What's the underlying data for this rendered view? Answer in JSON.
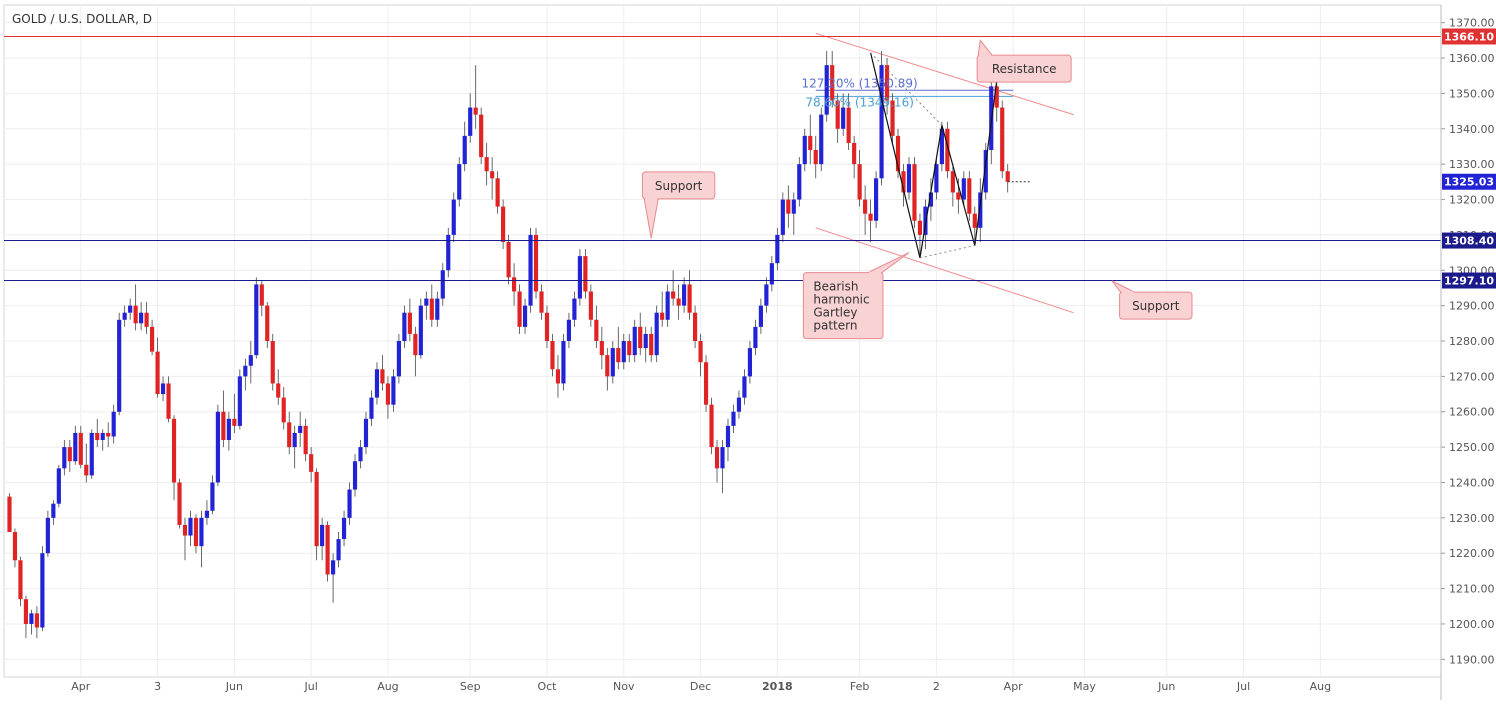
{
  "chart_data": {
    "type": "candlestick",
    "title": "GOLD / U.S. DOLLAR, D",
    "ylim": [
      1185,
      1375
    ],
    "y_ticks": [
      1190,
      1200,
      1210,
      1220,
      1230,
      1240,
      1250,
      1260,
      1270,
      1280,
      1290,
      1300,
      1310,
      1320,
      1330,
      1340,
      1350,
      1360,
      1370
    ],
    "x_tick_labels": [
      {
        "label": "Apr",
        "i": 13
      },
      {
        "label": "3",
        "i": 27
      },
      {
        "label": "Jun",
        "i": 41
      },
      {
        "label": "Jul",
        "i": 55
      },
      {
        "label": "Aug",
        "i": 69
      },
      {
        "label": "Sep",
        "i": 84
      },
      {
        "label": "Oct",
        "i": 98
      },
      {
        "label": "Nov",
        "i": 112
      },
      {
        "label": "Dec",
        "i": 126
      },
      {
        "label": "2018",
        "i": 140
      },
      {
        "label": "Feb",
        "i": 155
      },
      {
        "label": "2",
        "i": 169
      },
      {
        "label": "Apr",
        "i": 183
      },
      {
        "label": "May",
        "i": 196
      },
      {
        "label": "Jun",
        "i": 211
      },
      {
        "label": "Jul",
        "i": 225
      },
      {
        "label": "Aug",
        "i": 239
      }
    ],
    "x_range": [
      -1,
      261
    ],
    "grid": true,
    "colors": {
      "up": "#2323d6",
      "down": "#e02424",
      "resistance": "#e03232",
      "support": "#1b1b8c",
      "channel": "#f08a8a",
      "fib": "#4a9fd8"
    },
    "levels": [
      {
        "name": "Resistance",
        "price": 1366.1,
        "label": "1366.10",
        "color": "#e03232"
      },
      {
        "name": "Support",
        "price": 1308.4,
        "label": "1308.40",
        "color": "#1b1b8c"
      },
      {
        "name": "Support",
        "price": 1297.1,
        "label": "1297.10",
        "color": "#1b1b8c"
      }
    ],
    "last_price": {
      "price": 1325.03,
      "label": "1325.03",
      "color": "#2323d6"
    },
    "fib_levels": [
      {
        "text": "127.20% (1350.89)",
        "price": 1350.89,
        "from_i": 147,
        "to_i": 183,
        "color": "#5a6fd0"
      },
      {
        "text": "78.60% (1349.16)",
        "price": 1349.16,
        "from_i": 147,
        "to_i": 183,
        "color": "#4a9fd8"
      }
    ],
    "channel_lines": [
      {
        "i1": 147,
        "p1": 1367,
        "i2": 194,
        "p2": 1344
      },
      {
        "i1": 147,
        "p1": 1312,
        "i2": 194,
        "p2": 1288
      }
    ],
    "gartley": {
      "points": [
        {
          "i": 157,
          "p": 1361.5
        },
        {
          "i": 166,
          "p": 1303.5
        },
        {
          "i": 170,
          "p": 1341.0
        },
        {
          "i": 176,
          "p": 1307.0
        },
        {
          "i": 180,
          "p": 1353.5
        }
      ]
    },
    "annotations": [
      {
        "text": [
          "Resistance"
        ],
        "i": 185,
        "p": 1357,
        "arrow_to": {
          "i": 177,
          "p": 1365
        }
      },
      {
        "text": [
          "Support"
        ],
        "i": 122,
        "p": 1324,
        "arrow_to": {
          "i": 117,
          "p": 1309
        }
      },
      {
        "text": [
          "Support"
        ],
        "i": 209,
        "p": 1290,
        "arrow_to": {
          "i": 201,
          "p": 1297
        }
      },
      {
        "text": [
          "Bearish",
          "harmonic",
          "Gartley",
          "pattern"
        ],
        "i": 152,
        "p": 1290,
        "arrow_to": {
          "i": 164,
          "p": 1305
        }
      }
    ],
    "candles": [
      [
        1236,
        1237,
        1226,
        1226
      ],
      [
        1226,
        1227,
        1216,
        1218
      ],
      [
        1218,
        1219,
        1205,
        1207
      ],
      [
        1207,
        1208,
        1196,
        1200
      ],
      [
        1200,
        1204,
        1197,
        1203
      ],
      [
        1203,
        1205,
        1196,
        1199
      ],
      [
        1199,
        1222,
        1198,
        1220
      ],
      [
        1220,
        1232,
        1219,
        1230
      ],
      [
        1230,
        1235,
        1228,
        1234
      ],
      [
        1234,
        1245,
        1233,
        1244
      ],
      [
        1244,
        1252,
        1242,
        1250
      ],
      [
        1250,
        1252,
        1243,
        1246
      ],
      [
        1246,
        1256,
        1245,
        1254
      ],
      [
        1254,
        1256,
        1244,
        1245
      ],
      [
        1245,
        1251,
        1240,
        1242
      ],
      [
        1242,
        1255,
        1241,
        1254
      ],
      [
        1254,
        1258,
        1250,
        1252
      ],
      [
        1252,
        1255,
        1249,
        1254
      ],
      [
        1254,
        1257,
        1250,
        1253
      ],
      [
        1253,
        1262,
        1251,
        1260
      ],
      [
        1260,
        1288,
        1259,
        1286
      ],
      [
        1286,
        1290,
        1284,
        1288
      ],
      [
        1288,
        1292,
        1286,
        1290
      ],
      [
        1290,
        1296,
        1283,
        1285
      ],
      [
        1285,
        1291,
        1283,
        1288
      ],
      [
        1288,
        1291,
        1282,
        1284
      ],
      [
        1284,
        1286,
        1276,
        1277
      ],
      [
        1277,
        1281,
        1264,
        1265
      ],
      [
        1265,
        1270,
        1263,
        1268
      ],
      [
        1268,
        1270,
        1257,
        1258
      ],
      [
        1258,
        1259,
        1235,
        1240
      ],
      [
        1240,
        1241,
        1227,
        1228
      ],
      [
        1228,
        1230,
        1218,
        1225
      ],
      [
        1225,
        1232,
        1222,
        1230
      ],
      [
        1230,
        1231,
        1220,
        1222
      ],
      [
        1222,
        1232,
        1216,
        1230
      ],
      [
        1230,
        1235,
        1228,
        1232
      ],
      [
        1232,
        1242,
        1231,
        1240
      ],
      [
        1240,
        1262,
        1239,
        1260
      ],
      [
        1260,
        1266,
        1250,
        1252
      ],
      [
        1252,
        1260,
        1249,
        1258
      ],
      [
        1258,
        1265,
        1254,
        1256
      ],
      [
        1256,
        1272,
        1255,
        1270
      ],
      [
        1270,
        1275,
        1266,
        1273
      ],
      [
        1273,
        1280,
        1268,
        1276
      ],
      [
        1276,
        1298,
        1275,
        1296
      ],
      [
        1296,
        1297,
        1287,
        1290
      ],
      [
        1290,
        1291,
        1278,
        1280
      ],
      [
        1280,
        1282,
        1266,
        1268
      ],
      [
        1268,
        1272,
        1262,
        1264
      ],
      [
        1264,
        1267,
        1255,
        1257
      ],
      [
        1257,
        1260,
        1248,
        1250
      ],
      [
        1250,
        1256,
        1244,
        1254
      ],
      [
        1254,
        1260,
        1250,
        1256
      ],
      [
        1256,
        1258,
        1246,
        1248
      ],
      [
        1248,
        1250,
        1240,
        1243
      ],
      [
        1243,
        1244,
        1218,
        1222
      ],
      [
        1222,
        1230,
        1218,
        1228
      ],
      [
        1228,
        1229,
        1212,
        1214
      ],
      [
        1214,
        1220,
        1206,
        1218
      ],
      [
        1218,
        1226,
        1216,
        1224
      ],
      [
        1224,
        1232,
        1222,
        1230
      ],
      [
        1230,
        1240,
        1228,
        1238
      ],
      [
        1238,
        1248,
        1236,
        1246
      ],
      [
        1246,
        1252,
        1244,
        1250
      ],
      [
        1250,
        1260,
        1248,
        1258
      ],
      [
        1258,
        1266,
        1256,
        1264
      ],
      [
        1264,
        1274,
        1262,
        1272
      ],
      [
        1272,
        1276,
        1266,
        1268
      ],
      [
        1268,
        1270,
        1258,
        1262
      ],
      [
        1262,
        1272,
        1260,
        1270
      ],
      [
        1270,
        1282,
        1268,
        1280
      ],
      [
        1280,
        1290,
        1278,
        1288
      ],
      [
        1288,
        1292,
        1280,
        1282
      ],
      [
        1282,
        1284,
        1270,
        1276
      ],
      [
        1276,
        1292,
        1275,
        1290
      ],
      [
        1290,
        1294,
        1286,
        1292
      ],
      [
        1292,
        1296,
        1284,
        1286
      ],
      [
        1286,
        1294,
        1284,
        1292
      ],
      [
        1292,
        1302,
        1290,
        1300
      ],
      [
        1300,
        1312,
        1298,
        1310
      ],
      [
        1310,
        1322,
        1308,
        1320
      ],
      [
        1320,
        1332,
        1318,
        1330
      ],
      [
        1330,
        1342,
        1328,
        1338
      ],
      [
        1338,
        1350,
        1336,
        1346
      ],
      [
        1346,
        1358,
        1340,
        1344
      ],
      [
        1344,
        1346,
        1330,
        1332
      ],
      [
        1332,
        1336,
        1324,
        1328
      ],
      [
        1328,
        1332,
        1320,
        1326
      ],
      [
        1326,
        1328,
        1316,
        1318
      ],
      [
        1318,
        1320,
        1306,
        1308
      ],
      [
        1308,
        1310,
        1296,
        1298
      ],
      [
        1298,
        1302,
        1290,
        1294
      ],
      [
        1294,
        1296,
        1282,
        1284
      ],
      [
        1284,
        1292,
        1282,
        1290
      ],
      [
        1290,
        1312,
        1288,
        1310
      ],
      [
        1310,
        1312,
        1292,
        1294
      ],
      [
        1294,
        1296,
        1286,
        1288
      ],
      [
        1288,
        1290,
        1278,
        1280
      ],
      [
        1280,
        1282,
        1270,
        1272
      ],
      [
        1272,
        1276,
        1264,
        1268
      ],
      [
        1268,
        1282,
        1266,
        1280
      ],
      [
        1280,
        1288,
        1278,
        1286
      ],
      [
        1286,
        1294,
        1284,
        1292
      ],
      [
        1292,
        1306,
        1290,
        1304
      ],
      [
        1304,
        1306,
        1292,
        1294
      ],
      [
        1294,
        1296,
        1284,
        1286
      ],
      [
        1286,
        1290,
        1278,
        1280
      ],
      [
        1280,
        1284,
        1272,
        1276
      ],
      [
        1276,
        1278,
        1266,
        1270
      ],
      [
        1270,
        1280,
        1268,
        1278
      ],
      [
        1278,
        1284,
        1272,
        1274
      ],
      [
        1274,
        1282,
        1272,
        1280
      ],
      [
        1280,
        1282,
        1274,
        1276
      ],
      [
        1276,
        1286,
        1274,
        1284
      ],
      [
        1284,
        1288,
        1276,
        1278
      ],
      [
        1278,
        1284,
        1274,
        1282
      ],
      [
        1282,
        1284,
        1274,
        1276
      ],
      [
        1276,
        1290,
        1274,
        1288
      ],
      [
        1288,
        1294,
        1284,
        1286
      ],
      [
        1286,
        1296,
        1284,
        1294
      ],
      [
        1294,
        1300,
        1290,
        1292
      ],
      [
        1292,
        1296,
        1286,
        1290
      ],
      [
        1290,
        1298,
        1288,
        1296
      ],
      [
        1296,
        1300,
        1286,
        1288
      ],
      [
        1288,
        1290,
        1278,
        1280
      ],
      [
        1280,
        1282,
        1270,
        1274
      ],
      [
        1274,
        1276,
        1260,
        1262
      ],
      [
        1262,
        1264,
        1248,
        1250
      ],
      [
        1250,
        1252,
        1240,
        1244
      ],
      [
        1244,
        1252,
        1237,
        1250
      ],
      [
        1250,
        1258,
        1246,
        1256
      ],
      [
        1256,
        1262,
        1254,
        1260
      ],
      [
        1260,
        1266,
        1258,
        1264
      ],
      [
        1264,
        1272,
        1262,
        1270
      ],
      [
        1270,
        1280,
        1268,
        1278
      ],
      [
        1278,
        1286,
        1276,
        1284
      ],
      [
        1284,
        1292,
        1282,
        1290
      ],
      [
        1290,
        1298,
        1288,
        1296
      ],
      [
        1296,
        1304,
        1294,
        1302
      ],
      [
        1302,
        1312,
        1300,
        1310
      ],
      [
        1310,
        1322,
        1308,
        1320
      ],
      [
        1320,
        1324,
        1312,
        1316
      ],
      [
        1316,
        1322,
        1310,
        1320
      ],
      [
        1320,
        1332,
        1318,
        1330
      ],
      [
        1330,
        1340,
        1328,
        1338
      ],
      [
        1338,
        1344,
        1330,
        1334
      ],
      [
        1334,
        1338,
        1326,
        1330
      ],
      [
        1330,
        1346,
        1328,
        1344
      ],
      [
        1344,
        1362,
        1342,
        1358
      ],
      [
        1358,
        1362,
        1346,
        1348
      ],
      [
        1348,
        1350,
        1336,
        1340
      ],
      [
        1340,
        1350,
        1338,
        1346
      ],
      [
        1346,
        1350,
        1334,
        1336
      ],
      [
        1336,
        1338,
        1326,
        1330
      ],
      [
        1330,
        1334,
        1318,
        1320
      ],
      [
        1320,
        1324,
        1310,
        1316
      ],
      [
        1316,
        1320,
        1308,
        1314
      ],
      [
        1314,
        1328,
        1312,
        1326
      ],
      [
        1326,
        1362,
        1324,
        1358
      ],
      [
        1358,
        1360,
        1344,
        1348
      ],
      [
        1348,
        1350,
        1336,
        1338
      ],
      [
        1338,
        1340,
        1326,
        1328
      ],
      [
        1328,
        1330,
        1318,
        1322
      ],
      [
        1322,
        1332,
        1320,
        1330
      ],
      [
        1330,
        1332,
        1312,
        1314
      ],
      [
        1314,
        1316,
        1304,
        1310
      ],
      [
        1310,
        1320,
        1306,
        1318
      ],
      [
        1318,
        1326,
        1314,
        1322
      ],
      [
        1322,
        1332,
        1320,
        1330
      ],
      [
        1330,
        1342,
        1328,
        1340
      ],
      [
        1340,
        1342,
        1326,
        1328
      ],
      [
        1328,
        1330,
        1318,
        1322
      ],
      [
        1322,
        1326,
        1316,
        1320
      ],
      [
        1320,
        1328,
        1318,
        1326
      ],
      [
        1326,
        1328,
        1314,
        1316
      ],
      [
        1316,
        1318,
        1308,
        1312
      ],
      [
        1312,
        1326,
        1308,
        1322
      ],
      [
        1322,
        1336,
        1320,
        1334
      ],
      [
        1334,
        1354,
        1330,
        1352
      ],
      [
        1352,
        1357,
        1342,
        1346
      ],
      [
        1346,
        1348,
        1326,
        1328
      ],
      [
        1328,
        1330,
        1322,
        1325
      ]
    ]
  }
}
